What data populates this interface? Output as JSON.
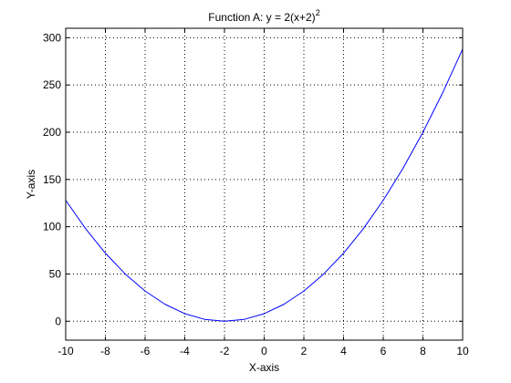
{
  "chart_data": {
    "type": "line",
    "title": "Function A: y = 2(x+2)",
    "title_superscript": "2",
    "xlabel": "X-axis",
    "ylabel": "Y-axis",
    "xlim": [
      -10,
      10
    ],
    "ylim": [
      -20,
      310
    ],
    "xticks": [
      -10,
      -8,
      -6,
      -4,
      -2,
      0,
      2,
      4,
      6,
      8,
      10
    ],
    "yticks": [
      0,
      50,
      100,
      150,
      200,
      250,
      300
    ],
    "grid": true,
    "line_color": "#0000ff",
    "series": [
      {
        "x": [
          -10,
          -9,
          -8,
          -7,
          -6,
          -5,
          -4,
          -3,
          -2,
          -1,
          0,
          1,
          2,
          3,
          4,
          5,
          6,
          7,
          8,
          9,
          10
        ],
        "y": [
          128,
          98,
          72,
          50,
          32,
          18,
          8,
          2,
          0,
          2,
          8,
          18,
          32,
          50,
          72,
          98,
          128,
          162,
          200,
          242,
          288
        ]
      }
    ]
  }
}
